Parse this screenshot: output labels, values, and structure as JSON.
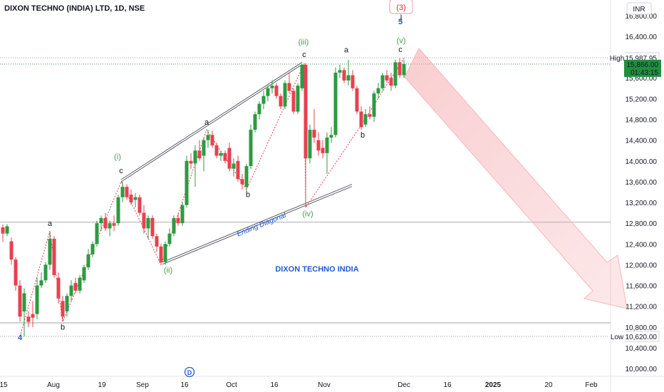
{
  "header": {
    "title": "DIXON TECHNO (INDIA) LTD, 1D, NSE",
    "currency": "INR"
  },
  "colors": {
    "up": "#2e9a40",
    "down": "#e8414f",
    "wave": "#43a047",
    "degree": "#d32f2f",
    "blue": "#1e5bd6",
    "label_bg": "#1f8f3f"
  },
  "chart_data": {
    "type": "candlestick",
    "title": "DIXON TECHNO (INDIA) LTD, 1D, NSE",
    "annotation": "DIXON TECHNO INDIA",
    "ylim": [
      9850,
      17100
    ],
    "xlim": [
      0,
      832
    ],
    "y_ticks": [
      10000,
      10400,
      10800,
      11200,
      11600,
      12000,
      12400,
      12800,
      13200,
      13600,
      14000,
      14400,
      14800,
      15200,
      15600,
      16000,
      16400,
      16800
    ],
    "y_tick_labels": [
      "10,000.00",
      "10,400.00",
      "10,800.00",
      "11,200.00",
      "11,600.00",
      "12,000.00",
      "12,400.00",
      "12,800.00",
      "13,200.00",
      "13,600.00",
      "14,000.00",
      "14,400.00",
      "14,800.00",
      "15,200.00",
      "15,600.00",
      "16,000.00",
      "16,400.00",
      "16,800.00"
    ],
    "x_ticks": [
      {
        "label": "15",
        "x": 5,
        "bold": false
      },
      {
        "label": "Aug",
        "x": 75,
        "bold": false
      },
      {
        "label": "19",
        "x": 143,
        "bold": false
      },
      {
        "label": "Sep",
        "x": 200,
        "bold": false
      },
      {
        "label": "16",
        "x": 259,
        "bold": false
      },
      {
        "label": "Oct",
        "x": 325,
        "bold": false
      },
      {
        "label": "16",
        "x": 385,
        "bold": false
      },
      {
        "label": "Nov",
        "x": 455,
        "bold": false
      },
      {
        "label": "Dec",
        "x": 567,
        "bold": false
      },
      {
        "label": "16",
        "x": 628,
        "bold": false
      },
      {
        "label": "2025",
        "x": 692,
        "bold": true
      },
      {
        "label": "20",
        "x": 770,
        "bold": false
      },
      {
        "label": "Feb",
        "x": 830,
        "bold": false
      }
    ],
    "candles": [
      {
        "x": 4,
        "o": 12720,
        "h": 12780,
        "l": 12440,
        "c": 12600
      },
      {
        "x": 10,
        "o": 12600,
        "h": 12780,
        "l": 12550,
        "c": 12740
      },
      {
        "x": 16,
        "o": 12450,
        "h": 12520,
        "l": 12000,
        "c": 12100
      },
      {
        "x": 22,
        "o": 12100,
        "h": 12150,
        "l": 11500,
        "c": 11600
      },
      {
        "x": 28,
        "o": 11600,
        "h": 11700,
        "l": 10900,
        "c": 11000
      },
      {
        "x": 34,
        "o": 11100,
        "h": 11550,
        "l": 10620,
        "c": 11450
      },
      {
        "x": 40,
        "o": 11000,
        "h": 11100,
        "l": 10800,
        "c": 10900
      },
      {
        "x": 46,
        "o": 11050,
        "h": 11300,
        "l": 10800,
        "c": 10980
      },
      {
        "x": 52,
        "o": 11050,
        "h": 11750,
        "l": 10950,
        "c": 11600
      },
      {
        "x": 58,
        "o": 11600,
        "h": 11850,
        "l": 11550,
        "c": 11700
      },
      {
        "x": 64,
        "o": 11700,
        "h": 12050,
        "l": 11650,
        "c": 12000
      },
      {
        "x": 70,
        "o": 12000,
        "h": 12650,
        "l": 11900,
        "c": 12500
      },
      {
        "x": 76,
        "o": 12500,
        "h": 12550,
        "l": 11750,
        "c": 11800
      },
      {
        "x": 82,
        "o": 11750,
        "h": 11850,
        "l": 11250,
        "c": 11350
      },
      {
        "x": 88,
        "o": 11300,
        "h": 11400,
        "l": 10900,
        "c": 11000
      },
      {
        "x": 94,
        "o": 11100,
        "h": 11450,
        "l": 11000,
        "c": 11400
      },
      {
        "x": 100,
        "o": 11400,
        "h": 11700,
        "l": 11300,
        "c": 11600
      },
      {
        "x": 106,
        "o": 11650,
        "h": 11750,
        "l": 11450,
        "c": 11500
      },
      {
        "x": 112,
        "o": 11500,
        "h": 11800,
        "l": 11450,
        "c": 11750
      },
      {
        "x": 118,
        "o": 11700,
        "h": 12000,
        "l": 11650,
        "c": 11950
      },
      {
        "x": 124,
        "o": 11950,
        "h": 12300,
        "l": 11900,
        "c": 12200
      },
      {
        "x": 130,
        "o": 12200,
        "h": 12450,
        "l": 12150,
        "c": 12400
      },
      {
        "x": 136,
        "o": 12400,
        "h": 12850,
        "l": 12350,
        "c": 12800
      },
      {
        "x": 142,
        "o": 12800,
        "h": 12950,
        "l": 12650,
        "c": 12900
      },
      {
        "x": 148,
        "o": 12900,
        "h": 13000,
        "l": 12650,
        "c": 12700
      },
      {
        "x": 154,
        "o": 12700,
        "h": 12850,
        "l": 12550,
        "c": 12800
      },
      {
        "x": 160,
        "o": 12800,
        "h": 12950,
        "l": 12650,
        "c": 12750
      },
      {
        "x": 166,
        "o": 12800,
        "h": 13350,
        "l": 12750,
        "c": 13300
      },
      {
        "x": 172,
        "o": 13300,
        "h": 13600,
        "l": 13200,
        "c": 13500
      },
      {
        "x": 178,
        "o": 13500,
        "h": 13550,
        "l": 13250,
        "c": 13300
      },
      {
        "x": 184,
        "o": 13350,
        "h": 13450,
        "l": 13150,
        "c": 13200
      },
      {
        "x": 190,
        "o": 13250,
        "h": 13380,
        "l": 13100,
        "c": 13300
      },
      {
        "x": 196,
        "o": 13300,
        "h": 13350,
        "l": 12950,
        "c": 13000
      },
      {
        "x": 202,
        "o": 13000,
        "h": 13150,
        "l": 12600,
        "c": 12700
      },
      {
        "x": 208,
        "o": 12700,
        "h": 12950,
        "l": 12500,
        "c": 12900
      },
      {
        "x": 214,
        "o": 12900,
        "h": 12950,
        "l": 12500,
        "c": 12550
      },
      {
        "x": 220,
        "o": 12550,
        "h": 12600,
        "l": 12250,
        "c": 12350
      },
      {
        "x": 226,
        "o": 12350,
        "h": 12400,
        "l": 12000,
        "c": 12050
      },
      {
        "x": 232,
        "o": 12050,
        "h": 12450,
        "l": 12000,
        "c": 12400
      },
      {
        "x": 238,
        "o": 12400,
        "h": 12700,
        "l": 12350,
        "c": 12600
      },
      {
        "x": 244,
        "o": 12600,
        "h": 12950,
        "l": 12550,
        "c": 12900
      },
      {
        "x": 250,
        "o": 12900,
        "h": 13000,
        "l": 12750,
        "c": 12800
      },
      {
        "x": 256,
        "o": 12800,
        "h": 13200,
        "l": 12750,
        "c": 13150
      },
      {
        "x": 262,
        "o": 13150,
        "h": 14100,
        "l": 13100,
        "c": 14000
      },
      {
        "x": 268,
        "o": 14000,
        "h": 14150,
        "l": 13850,
        "c": 13950
      },
      {
        "x": 274,
        "o": 13950,
        "h": 14300,
        "l": 13500,
        "c": 14200
      },
      {
        "x": 280,
        "o": 14200,
        "h": 14400,
        "l": 14000,
        "c": 14050
      },
      {
        "x": 286,
        "o": 14100,
        "h": 14450,
        "l": 13800,
        "c": 14400
      },
      {
        "x": 292,
        "o": 14400,
        "h": 14600,
        "l": 14250,
        "c": 14500
      },
      {
        "x": 298,
        "o": 14500,
        "h": 14580,
        "l": 14250,
        "c": 14300
      },
      {
        "x": 304,
        "o": 14300,
        "h": 14350,
        "l": 14050,
        "c": 14100
      },
      {
        "x": 310,
        "o": 14100,
        "h": 14200,
        "l": 14000,
        "c": 14150
      },
      {
        "x": 316,
        "o": 14150,
        "h": 14200,
        "l": 13950,
        "c": 14000
      },
      {
        "x": 322,
        "o": 14250,
        "h": 14350,
        "l": 13800,
        "c": 13850
      },
      {
        "x": 328,
        "o": 13850,
        "h": 14050,
        "l": 13700,
        "c": 13950
      },
      {
        "x": 334,
        "o": 14000,
        "h": 14100,
        "l": 13600,
        "c": 13650
      },
      {
        "x": 340,
        "o": 13650,
        "h": 13750,
        "l": 13450,
        "c": 13550
      },
      {
        "x": 346,
        "o": 13500,
        "h": 13950,
        "l": 13400,
        "c": 13900
      },
      {
        "x": 352,
        "o": 13900,
        "h": 14700,
        "l": 13850,
        "c": 14600
      },
      {
        "x": 358,
        "o": 14600,
        "h": 14950,
        "l": 14550,
        "c": 14900
      },
      {
        "x": 364,
        "o": 14900,
        "h": 15150,
        "l": 14800,
        "c": 15100
      },
      {
        "x": 370,
        "o": 15100,
        "h": 15350,
        "l": 15000,
        "c": 15250
      },
      {
        "x": 376,
        "o": 15250,
        "h": 15450,
        "l": 15150,
        "c": 15400
      },
      {
        "x": 382,
        "o": 15400,
        "h": 15550,
        "l": 15300,
        "c": 15450
      },
      {
        "x": 388,
        "o": 15450,
        "h": 15500,
        "l": 15200,
        "c": 15250
      },
      {
        "x": 394,
        "o": 15250,
        "h": 15300,
        "l": 15000,
        "c": 15050
      },
      {
        "x": 400,
        "o": 15050,
        "h": 15550,
        "l": 15000,
        "c": 15500
      },
      {
        "x": 406,
        "o": 15500,
        "h": 15700,
        "l": 15300,
        "c": 15350
      },
      {
        "x": 412,
        "o": 15350,
        "h": 15400,
        "l": 14900,
        "c": 14950
      },
      {
        "x": 418,
        "o": 14950,
        "h": 15500,
        "l": 14900,
        "c": 15450
      },
      {
        "x": 424,
        "o": 15400,
        "h": 15870,
        "l": 15350,
        "c": 15850
      },
      {
        "x": 429,
        "o": 15850,
        "h": 15880,
        "l": 13100,
        "c": 14050
      },
      {
        "x": 435,
        "o": 14050,
        "h": 14700,
        "l": 13950,
        "c": 14600
      },
      {
        "x": 441,
        "o": 14600,
        "h": 15000,
        "l": 14350,
        "c": 14450
      },
      {
        "x": 447,
        "o": 14400,
        "h": 14550,
        "l": 14100,
        "c": 14200
      },
      {
        "x": 453,
        "o": 14250,
        "h": 14400,
        "l": 14050,
        "c": 14150
      },
      {
        "x": 459,
        "o": 14150,
        "h": 14550,
        "l": 13750,
        "c": 14450
      },
      {
        "x": 465,
        "o": 14450,
        "h": 14650,
        "l": 14350,
        "c": 14500
      },
      {
        "x": 471,
        "o": 14500,
        "h": 15800,
        "l": 14450,
        "c": 15700
      },
      {
        "x": 477,
        "o": 15700,
        "h": 15850,
        "l": 15600,
        "c": 15750
      },
      {
        "x": 483,
        "o": 15750,
        "h": 15800,
        "l": 15500,
        "c": 15550
      },
      {
        "x": 489,
        "o": 15550,
        "h": 15950,
        "l": 15450,
        "c": 15650
      },
      {
        "x": 495,
        "o": 15650,
        "h": 15750,
        "l": 15350,
        "c": 15400
      },
      {
        "x": 501,
        "o": 15400,
        "h": 15450,
        "l": 14900,
        "c": 14950
      },
      {
        "x": 507,
        "o": 14950,
        "h": 15050,
        "l": 14600,
        "c": 14650
      },
      {
        "x": 513,
        "o": 14700,
        "h": 15000,
        "l": 14650,
        "c": 14900
      },
      {
        "x": 519,
        "o": 14900,
        "h": 15050,
        "l": 14800,
        "c": 14850
      },
      {
        "x": 525,
        "o": 14850,
        "h": 15350,
        "l": 14750,
        "c": 15300
      },
      {
        "x": 531,
        "o": 15300,
        "h": 15500,
        "l": 15200,
        "c": 15400
      },
      {
        "x": 537,
        "o": 15400,
        "h": 15700,
        "l": 15350,
        "c": 15650
      },
      {
        "x": 543,
        "o": 15650,
        "h": 15750,
        "l": 15500,
        "c": 15550
      },
      {
        "x": 549,
        "o": 15600,
        "h": 15700,
        "l": 15350,
        "c": 15450
      },
      {
        "x": 555,
        "o": 15450,
        "h": 15950,
        "l": 15400,
        "c": 15900
      },
      {
        "x": 561,
        "o": 15900,
        "h": 15980,
        "l": 15600,
        "c": 15650
      },
      {
        "x": 567,
        "o": 15650,
        "h": 15950,
        "l": 15600,
        "c": 15866
      }
    ],
    "wave_labels": [
      {
        "text": "4",
        "x": 28,
        "y": 10550,
        "color": "blue"
      },
      {
        "text": "a",
        "x": 70,
        "y": 12750,
        "color": "black"
      },
      {
        "text": "b",
        "x": 88,
        "y": 10750,
        "color": "black"
      },
      {
        "text": "c",
        "x": 170,
        "y": 13760,
        "color": "black"
      },
      {
        "text": "(i)",
        "x": 165,
        "y": 14030,
        "color": "wave"
      },
      {
        "text": "(ii)",
        "x": 236,
        "y": 11850,
        "color": "wave"
      },
      {
        "text": "a",
        "x": 290,
        "y": 14700,
        "color": "black"
      },
      {
        "text": "b",
        "x": 348,
        "y": 13300,
        "color": "black"
      },
      {
        "text": "c",
        "x": 427,
        "y": 16000,
        "color": "black"
      },
      {
        "text": "(iii)",
        "x": 426,
        "y": 16240,
        "color": "wave"
      },
      {
        "text": "(iv)",
        "x": 432,
        "y": 12930,
        "color": "wave"
      },
      {
        "text": "a",
        "x": 486,
        "y": 16090,
        "color": "black"
      },
      {
        "text": "b",
        "x": 509,
        "y": 14450,
        "color": "black"
      },
      {
        "text": "c",
        "x": 562,
        "y": 16100,
        "color": "black"
      },
      {
        "text": "(v)",
        "x": 563,
        "y": 16270,
        "color": "wave"
      },
      {
        "text": "5",
        "x": 562,
        "y": 16630,
        "color": "blue"
      },
      {
        "text": "(3)",
        "x": 563,
        "y": 16950,
        "color": "degree"
      }
    ],
    "channel_label": "Ending Diagonal",
    "high": {
      "label": "High",
      "value": 15987.95,
      "text": "15,987.95"
    },
    "low": {
      "label": "Low",
      "value": 10620,
      "text": "10,620.00"
    },
    "last_price": {
      "value": 15866,
      "text": "15,866.00",
      "countdown": "01:43:15"
    },
    "horizontal_levels": [
      12820,
      10880
    ],
    "event_marker": "D"
  }
}
